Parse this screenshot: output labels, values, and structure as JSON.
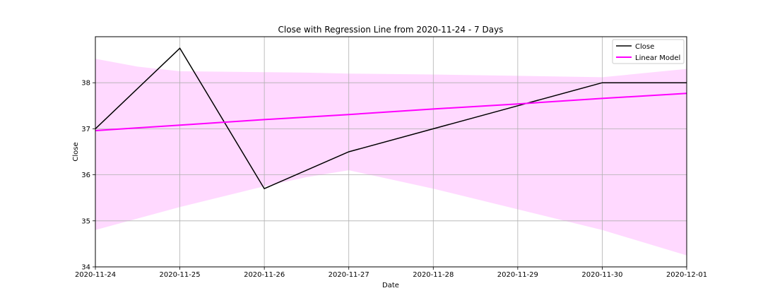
{
  "chart_data": {
    "type": "line",
    "title": "Close with Regression Line from 2020-11-24  - 7 Days",
    "xlabel": "Date",
    "ylabel": "Close",
    "x": [
      "2020-11-24",
      "2020-11-25",
      "2020-11-26",
      "2020-11-27",
      "2020-11-28",
      "2020-11-29",
      "2020-11-30",
      "2020-12-01"
    ],
    "x_tick_labels": [
      "2020-11-24",
      "2020-11-25",
      "2020-11-26",
      "2020-11-27",
      "2020-11-28",
      "2020-11-29",
      "2020-11-30",
      "2020-12-01"
    ],
    "y_ticks": [
      34,
      35,
      36,
      37,
      38
    ],
    "ylim": [
      34.0,
      39.0
    ],
    "grid": true,
    "legend_position": "top-right",
    "series": [
      {
        "name": "Close",
        "color": "#000000",
        "values": [
          37.0,
          38.75,
          35.7,
          36.5,
          37.0,
          37.5,
          38.0,
          38.0
        ]
      },
      {
        "name": "Linear Model",
        "color": "#ff00ff",
        "values": [
          36.96,
          37.08,
          37.2,
          37.31,
          37.43,
          37.54,
          37.66,
          37.77
        ]
      }
    ],
    "confidence_band": {
      "color": "#ffd9ff",
      "x": [
        "2020-11-24",
        "2020-11-24T12:00",
        "2020-11-25",
        "2020-11-26",
        "2020-11-26T12:00",
        "2020-11-27",
        "2020-11-28",
        "2020-11-29",
        "2020-11-30",
        "2020-12-01"
      ],
      "upper": [
        38.52,
        38.35,
        38.25,
        38.23,
        38.22,
        38.2,
        38.18,
        38.15,
        38.12,
        38.3
      ],
      "lower": [
        34.8,
        35.05,
        35.3,
        35.75,
        35.95,
        36.1,
        35.7,
        35.25,
        34.8,
        34.25
      ]
    }
  }
}
